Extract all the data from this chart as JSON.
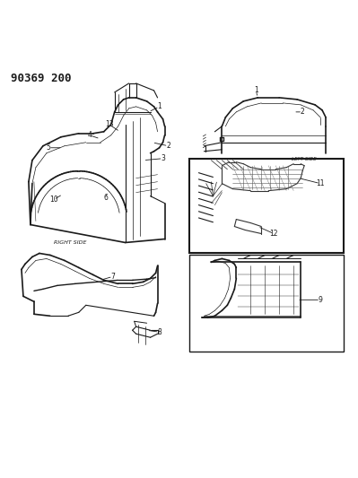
{
  "title": "90369 200",
  "background_color": "#ffffff",
  "line_color": "#1a1a1a",
  "fig_width": 3.99,
  "fig_height": 5.33,
  "dpi": 100
}
